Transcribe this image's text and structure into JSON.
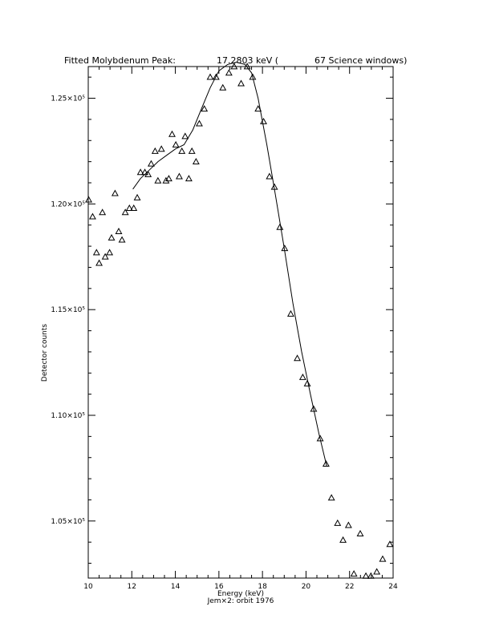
{
  "chart_data": {
    "type": "scatter",
    "title_left": "Fitted Molybdenum Peak:",
    "title_value": "17.2803 keV (",
    "title_right": "67 Science windows)",
    "xlabel": "Energy (keV)",
    "subtitle": "Jem×2: orbit 1976",
    "ylabel": "Detector counts",
    "xlim": [
      10,
      24
    ],
    "ylim": [
      102300,
      126500
    ],
    "x_ticks": [
      {
        "value": 10,
        "label": "10"
      },
      {
        "value": 12,
        "label": "12"
      },
      {
        "value": 14,
        "label": "14"
      },
      {
        "value": 16,
        "label": "16"
      },
      {
        "value": 18,
        "label": "18"
      },
      {
        "value": 20,
        "label": "20"
      },
      {
        "value": 22,
        "label": "22"
      },
      {
        "value": 24,
        "label": "24"
      }
    ],
    "y_ticks": [
      {
        "value": 105000,
        "label": "1.05×10⁵"
      },
      {
        "value": 110000,
        "label": "1.10×10⁵"
      },
      {
        "value": 115000,
        "label": "1.15×10⁵"
      },
      {
        "value": 120000,
        "label": "1.20×10⁵"
      },
      {
        "value": 125000,
        "label": "1.25×10⁵"
      }
    ],
    "series": [
      {
        "marker": "triangle",
        "points": [
          [
            10.02,
            120200
          ],
          [
            10.2,
            119400
          ],
          [
            10.38,
            117700
          ],
          [
            10.5,
            117200
          ],
          [
            10.65,
            119600
          ],
          [
            10.78,
            117500
          ],
          [
            10.98,
            117700
          ],
          [
            11.07,
            118400
          ],
          [
            11.23,
            120500
          ],
          [
            11.4,
            118700
          ],
          [
            11.55,
            118300
          ],
          [
            11.7,
            119600
          ],
          [
            11.89,
            119800
          ],
          [
            12.09,
            119800
          ],
          [
            12.25,
            120300
          ],
          [
            12.4,
            121500
          ],
          [
            12.6,
            121500
          ],
          [
            12.75,
            121400
          ],
          [
            12.89,
            121900
          ],
          [
            13.07,
            122500
          ],
          [
            13.2,
            121100
          ],
          [
            13.36,
            122600
          ],
          [
            13.57,
            121100
          ],
          [
            13.7,
            121200
          ],
          [
            13.85,
            123300
          ],
          [
            14.02,
            122800
          ],
          [
            14.18,
            121300
          ],
          [
            14.3,
            122500
          ],
          [
            14.45,
            123200
          ],
          [
            14.62,
            121200
          ],
          [
            14.76,
            122500
          ],
          [
            14.95,
            122000
          ],
          [
            15.1,
            123800
          ],
          [
            15.33,
            124500
          ],
          [
            15.6,
            126000
          ],
          [
            15.87,
            126000
          ],
          [
            16.18,
            125500
          ],
          [
            16.46,
            126200
          ],
          [
            16.7,
            126500
          ],
          [
            17.02,
            125700
          ],
          [
            17.3,
            126500
          ],
          [
            17.55,
            126000
          ],
          [
            17.8,
            124500
          ],
          [
            18.05,
            123900
          ],
          [
            18.32,
            121300
          ],
          [
            18.55,
            120800
          ],
          [
            18.8,
            118900
          ],
          [
            19.02,
            117900
          ],
          [
            19.3,
            114800
          ],
          [
            19.6,
            112700
          ],
          [
            19.85,
            111800
          ],
          [
            20.06,
            111500
          ],
          [
            20.35,
            110300
          ],
          [
            20.65,
            108900
          ],
          [
            20.92,
            107700
          ],
          [
            21.17,
            106100
          ],
          [
            21.45,
            104900
          ],
          [
            21.7,
            104100
          ],
          [
            21.95,
            104800
          ],
          [
            22.2,
            102500
          ],
          [
            22.49,
            104400
          ],
          [
            22.75,
            102400
          ],
          [
            22.98,
            102400
          ],
          [
            23.25,
            102600
          ],
          [
            23.52,
            103200
          ],
          [
            23.85,
            103900
          ]
        ]
      },
      {
        "marker": "line",
        "points": [
          [
            12.05,
            120700
          ],
          [
            12.4,
            121200
          ],
          [
            12.8,
            121600
          ],
          [
            13.2,
            122000
          ],
          [
            13.6,
            122300
          ],
          [
            14.0,
            122600
          ],
          [
            14.4,
            122800
          ],
          [
            14.8,
            123500
          ],
          [
            15.2,
            124500
          ],
          [
            15.6,
            125500
          ],
          [
            16.0,
            126300
          ],
          [
            16.4,
            126600
          ],
          [
            16.8,
            126700
          ],
          [
            17.2,
            126600
          ],
          [
            17.5,
            126200
          ],
          [
            17.8,
            125000
          ],
          [
            18.2,
            122800
          ],
          [
            18.6,
            120400
          ],
          [
            19.0,
            117900
          ],
          [
            19.4,
            115300
          ],
          [
            19.8,
            113000
          ],
          [
            20.2,
            111000
          ],
          [
            20.6,
            109100
          ],
          [
            20.95,
            107600
          ]
        ]
      }
    ]
  }
}
